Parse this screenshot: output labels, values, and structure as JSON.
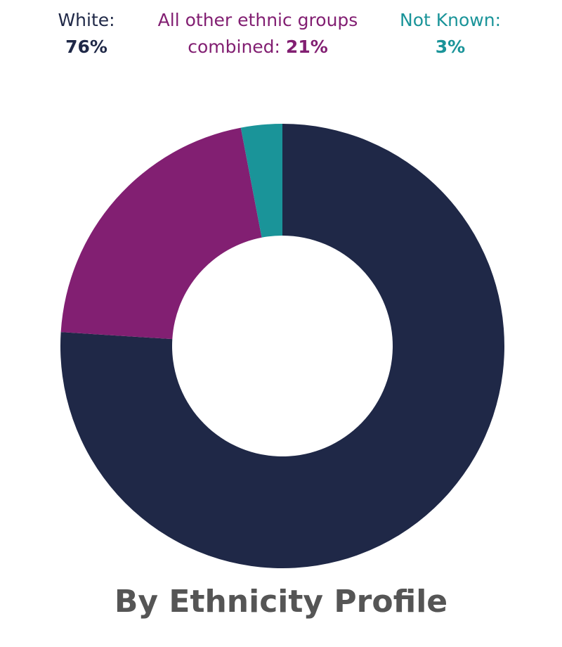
{
  "chart_data": {
    "type": "donut",
    "title": "By Ethnicity Profile",
    "categories": [
      "White:",
      "All other ethnic groups combined:",
      "Not Known:"
    ],
    "values": [
      76,
      21,
      3
    ],
    "value_labels": [
      "76%",
      "21%",
      "3%"
    ],
    "colors": [
      "#1f2847",
      "#821f72",
      "#1a9499"
    ]
  }
}
